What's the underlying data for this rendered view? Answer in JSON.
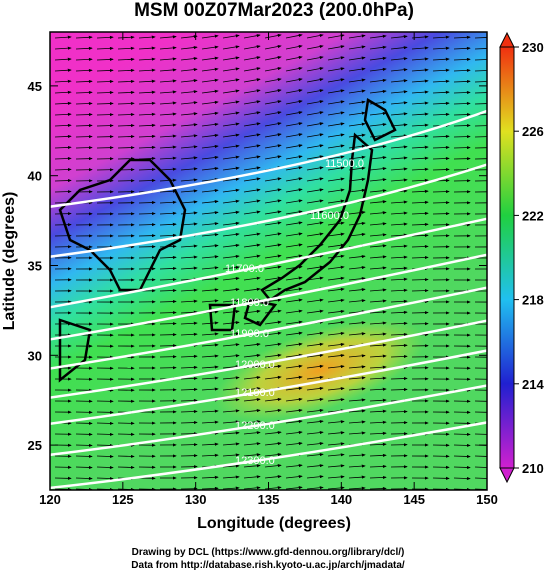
{
  "title": "MSM 00Z07Mar2023 (200.0hPa)",
  "x_axis": {
    "label": "Longitude (degrees)",
    "lim": [
      120,
      150
    ],
    "ticks": [
      120,
      125,
      130,
      135,
      140,
      145,
      150
    ]
  },
  "y_axis": {
    "label": "Latitude  (degrees)",
    "lim": [
      22.5,
      48
    ],
    "ticks": [
      25,
      30,
      35,
      40,
      45
    ]
  },
  "colorbar": {
    "lim": [
      210,
      230
    ],
    "ticks": [
      210,
      214,
      218,
      222,
      226,
      230
    ]
  },
  "contour_labels": [
    "11500.0",
    "11600.0",
    "11700.0",
    "11800.0",
    "11900.0",
    "12000.0",
    "12100.0",
    "12200.0",
    "12300.0"
  ],
  "credits": [
    "Drawing by DCL (https://www.gfd-dennou.org/library/dcl/)",
    "Data from http://database.rish.kyoto-u.ac.jp/arch/jmadata/"
  ]
}
